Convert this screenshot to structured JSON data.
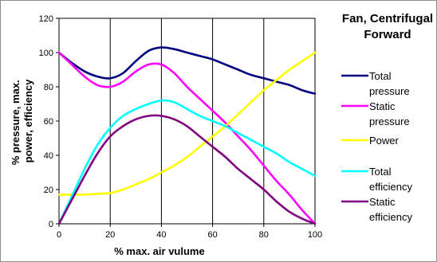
{
  "chart_data": {
    "type": "line",
    "title": [
      "Fan, Centrifugal",
      "Forward"
    ],
    "xlabel": "% max. air vulume",
    "ylabel": [
      "% pressure, max.",
      "power, efficiency"
    ],
    "xlim": [
      0,
      100
    ],
    "ylim": [
      0,
      120
    ],
    "xticks": [
      0,
      20,
      40,
      60,
      80,
      100
    ],
    "yticks": [
      0,
      20,
      40,
      60,
      80,
      100,
      120
    ],
    "grid": "vertical",
    "legend_position": "right",
    "series": [
      {
        "name": [
          "Total",
          "pressure"
        ],
        "color": "#000080",
        "x": [
          0,
          5,
          10,
          15,
          20,
          25,
          30,
          35,
          40,
          45,
          50,
          55,
          60,
          65,
          70,
          75,
          80,
          85,
          90,
          95,
          100
        ],
        "y": [
          100,
          94,
          89,
          86,
          85,
          88,
          95,
          101,
          103,
          102,
          100,
          98,
          96,
          93,
          90,
          87,
          85,
          83,
          81,
          78,
          76
        ]
      },
      {
        "name": [
          "Static",
          "pressure"
        ],
        "color": "#ff00ff",
        "x": [
          0,
          5,
          10,
          15,
          20,
          25,
          30,
          35,
          40,
          45,
          50,
          55,
          60,
          65,
          70,
          75,
          80,
          85,
          90,
          95,
          100
        ],
        "y": [
          100,
          93,
          86,
          81,
          80,
          83,
          89,
          93,
          93,
          88,
          80,
          73,
          66,
          59,
          51,
          43,
          34,
          25,
          17,
          8,
          0
        ]
      },
      {
        "name": [
          "Power"
        ],
        "color": "#ffff00",
        "x": [
          0,
          5,
          10,
          15,
          20,
          25,
          30,
          35,
          40,
          45,
          50,
          55,
          60,
          65,
          70,
          75,
          80,
          85,
          90,
          95,
          100
        ],
        "y": [
          17,
          17,
          17,
          17.5,
          18,
          20,
          23,
          26,
          30,
          34,
          39,
          45,
          51,
          57,
          64,
          71,
          78,
          84,
          90,
          95,
          100
        ]
      },
      {
        "name": [
          "Total",
          "efficiency"
        ],
        "color": "#00ffff",
        "x": [
          0,
          5,
          10,
          15,
          20,
          25,
          30,
          35,
          40,
          45,
          50,
          55,
          60,
          65,
          70,
          75,
          80,
          85,
          90,
          95,
          100
        ],
        "y": [
          0,
          16,
          32,
          46,
          56,
          63,
          67,
          70,
          72,
          71,
          67,
          63,
          60,
          57,
          53,
          49,
          45,
          41,
          36,
          32,
          28
        ]
      },
      {
        "name": [
          "Static",
          "efficiency"
        ],
        "color": "#800080",
        "x": [
          0,
          5,
          10,
          15,
          20,
          25,
          30,
          35,
          40,
          45,
          50,
          55,
          60,
          65,
          70,
          75,
          80,
          85,
          90,
          95,
          100
        ],
        "y": [
          0,
          14,
          28,
          41,
          51,
          57,
          61,
          63,
          63,
          61,
          57,
          51,
          45,
          39,
          32,
          26,
          20,
          13,
          7,
          3,
          0
        ]
      }
    ]
  }
}
